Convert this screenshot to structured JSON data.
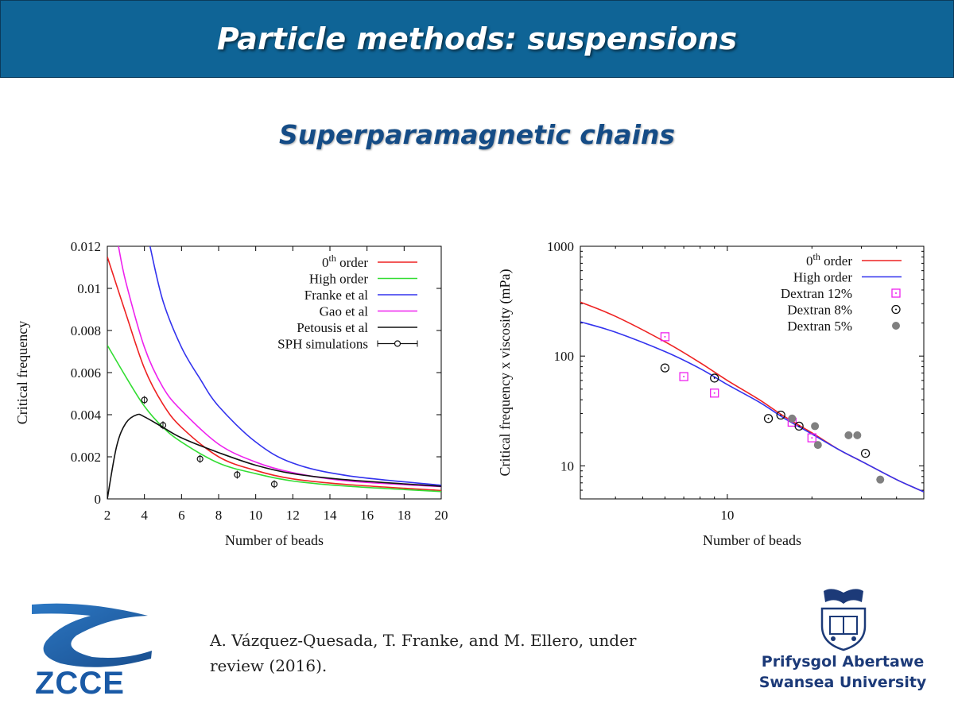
{
  "slide": {
    "title": "Particle methods: suspensions",
    "subtitle": "Superparamagnetic chains",
    "citation_line1": "A. Vázquez-Quesada, T. Franke, and M. Ellero, under",
    "citation_line2": "review (2016).",
    "logo_left_text": "ZCCE",
    "uni_name_1": "Prifysgol Abertawe",
    "uni_name_2": "Swansea University",
    "colors": {
      "title_bar": "#0f6496",
      "subtitle": "#154c86",
      "uni_text": "#1c3a78",
      "zcce_blue": "#1a5aa6"
    }
  },
  "chart_data": [
    {
      "type": "line",
      "title": "",
      "xlabel": "Number of beads",
      "ylabel": "Critical frequency",
      "xlim": [
        2,
        20
      ],
      "ylim": [
        0,
        0.012
      ],
      "xticks": [
        2,
        4,
        6,
        8,
        10,
        12,
        14,
        16,
        18,
        20
      ],
      "xtick_labels": [
        "2",
        "4",
        "6",
        "8",
        "10",
        "12",
        "14",
        "16",
        "18",
        "20"
      ],
      "yticks": [
        0,
        0.002,
        0.004,
        0.006,
        0.008,
        0.01,
        0.012
      ],
      "ytick_labels": [
        "0",
        "0.002",
        "0.004",
        "0.006",
        "0.008",
        "0.01",
        "0.012"
      ],
      "legend_position": "top-right",
      "grid": false,
      "series": [
        {
          "name": "0th order",
          "label_main": "0",
          "label_sup": "th",
          "label_tail": " order",
          "color": "#ee2222",
          "x": [
            2,
            3,
            4,
            5,
            6,
            8,
            10,
            12,
            15,
            20
          ],
          "y": [
            0.0115,
            0.0088,
            0.0062,
            0.0045,
            0.0034,
            0.002,
            0.00135,
            0.00095,
            0.00068,
            0.0004
          ]
        },
        {
          "name": "High order",
          "color": "#33dd33",
          "x": [
            2,
            3,
            4,
            5,
            6,
            8,
            10,
            12,
            15,
            20
          ],
          "y": [
            0.0073,
            0.0058,
            0.0044,
            0.0034,
            0.0027,
            0.0017,
            0.0012,
            0.00085,
            0.0006,
            0.00035
          ]
        },
        {
          "name": "Franke et al",
          "color": "#3333ee",
          "x": [
            4.3,
            5,
            6,
            7,
            8,
            10,
            12,
            15,
            20
          ],
          "y": [
            0.012,
            0.0094,
            0.0072,
            0.0057,
            0.0044,
            0.0027,
            0.0017,
            0.0011,
            0.00065
          ]
        },
        {
          "name": "Gao et al",
          "color": "#ee22ee",
          "x": [
            2.6,
            3,
            4,
            5,
            6,
            8,
            10,
            12,
            15,
            20
          ],
          "y": [
            0.012,
            0.0103,
            0.0072,
            0.0053,
            0.0042,
            0.0026,
            0.00175,
            0.00125,
            0.00085,
            0.00058
          ]
        },
        {
          "name": "Petousis et al",
          "color": "#111111",
          "x": [
            2,
            2.5,
            3,
            3.6,
            4,
            5,
            6,
            8,
            10,
            12,
            15,
            20
          ],
          "y": [
            0,
            0.0025,
            0.0036,
            0.004,
            0.0039,
            0.0034,
            0.0029,
            0.0022,
            0.0016,
            0.0012,
            0.0009,
            0.0006
          ]
        },
        {
          "name": "SPH simulations",
          "color": "#111111",
          "marker": "open-circle-errorbar",
          "x": [
            4,
            5,
            7,
            9,
            11
          ],
          "y": [
            0.0047,
            0.0035,
            0.0019,
            0.00115,
            0.0007
          ]
        }
      ]
    },
    {
      "type": "line",
      "title": "",
      "xlabel": "Number of beads",
      "ylabel": "Critical frequency  x  viscosity (mPa)",
      "xscale": "log",
      "yscale": "log",
      "xlim": [
        3,
        50
      ],
      "ylim": [
        5,
        1000
      ],
      "xticks": [
        10
      ],
      "xtick_labels": [
        "10"
      ],
      "yticks": [
        10,
        100,
        1000
      ],
      "ytick_labels": [
        "10",
        "100",
        "1000"
      ],
      "legend_position": "top-right",
      "grid": false,
      "series": [
        {
          "name": "0th order",
          "label_main": "0",
          "label_sup": "th",
          "label_tail": " order",
          "color": "#ee2222",
          "x": [
            3,
            4,
            6,
            8,
            10,
            13,
            16,
            20,
            25,
            30,
            40,
            50
          ],
          "y": [
            310,
            230,
            135,
            87,
            60,
            40,
            28,
            20,
            14,
            11,
            7.5,
            5.8
          ]
        },
        {
          "name": "High order",
          "color": "#3333ee",
          "x": [
            3,
            4,
            6,
            8,
            10,
            13,
            16,
            20,
            25,
            30,
            40,
            50
          ],
          "y": [
            205,
            165,
            110,
            77,
            55,
            38,
            27,
            19.5,
            14,
            11,
            7.5,
            5.8
          ]
        },
        {
          "name": "Dextran 12%",
          "color": "#ee22ee",
          "marker": "open-square-dot",
          "x": [
            6,
            7,
            9,
            17,
            20
          ],
          "y": [
            150,
            65,
            46,
            25,
            18
          ]
        },
        {
          "name": "Dextran 8%",
          "color": "#111111",
          "marker": "open-circle-dot",
          "x": [
            6,
            9,
            14,
            15.5,
            18,
            31
          ],
          "y": [
            78,
            63,
            27,
            29,
            23,
            13
          ]
        },
        {
          "name": "Dextran 5%",
          "color": "#808080",
          "marker": "filled-circle",
          "x": [
            17,
            20.5,
            21,
            27,
            29,
            35
          ],
          "y": [
            27,
            23,
            15.5,
            19,
            19,
            7.5
          ]
        }
      ]
    }
  ]
}
